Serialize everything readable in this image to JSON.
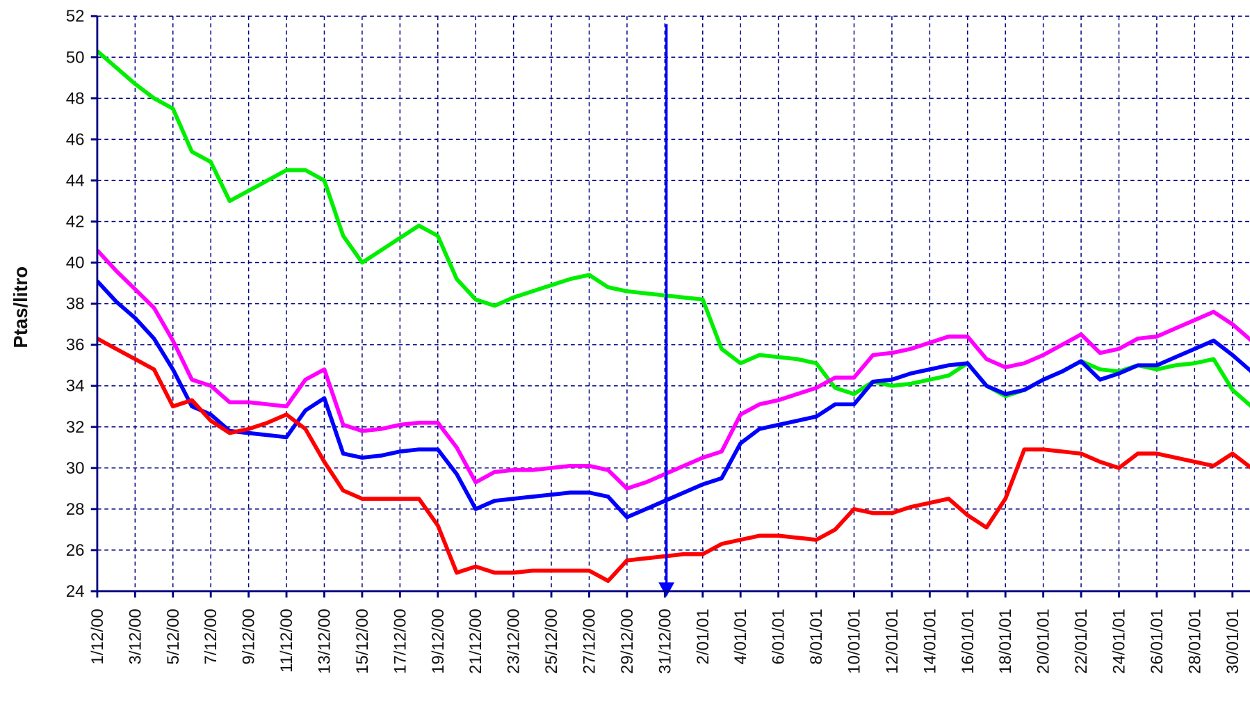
{
  "chart_data": {
    "type": "line",
    "y_label": "Ptas/litro",
    "categories": [
      "1/12/00",
      null,
      "3/12/00",
      null,
      "5/12/00",
      null,
      "7/12/00",
      null,
      "9/12/00",
      null,
      "11/12/00",
      null,
      "13/12/00",
      null,
      "15/12/00",
      null,
      "17/12/00",
      null,
      "19/12/00",
      null,
      "21/12/00",
      null,
      "23/12/00",
      null,
      "25/12/00",
      null,
      "27/12/00",
      null,
      "29/12/00",
      null,
      "31/12/00",
      null,
      "2/01/01",
      null,
      "4/01/01",
      null,
      "6/01/01",
      null,
      "8/01/01",
      null,
      "10/01/01",
      null,
      "12/01/01",
      null,
      "14/01/01",
      null,
      "16/01/01",
      null,
      "18/01/01",
      null,
      "20/01/01",
      null,
      "22/01/01",
      null,
      "24/01/01",
      null,
      "26/01/01",
      null,
      "28/01/01",
      null,
      "30/01/01",
      null
    ],
    "series": [
      {
        "color": "#00ee00",
        "values": [
          50.3,
          49.5,
          48.7,
          48.0,
          47.5,
          45.4,
          44.9,
          43.0,
          43.5,
          44.0,
          44.5,
          44.5,
          44.0,
          41.3,
          40.0,
          40.6,
          41.2,
          41.8,
          41.3,
          39.2,
          38.2,
          37.9,
          38.3,
          38.6,
          38.9,
          39.2,
          39.4,
          38.8,
          38.6,
          38.5,
          38.4,
          38.3,
          38.2,
          35.8,
          35.1,
          35.5,
          35.4,
          35.3,
          35.1,
          33.9,
          33.6,
          34.2,
          34.0,
          34.1,
          34.3,
          34.5,
          35.1,
          34.0,
          33.5,
          33.8,
          34.3,
          34.7,
          35.2,
          34.8,
          34.7,
          35.0,
          34.8,
          35.0,
          35.1,
          35.3,
          33.8,
          33.0
        ]
      },
      {
        "color": "#ff00ff",
        "values": [
          40.6,
          39.6,
          38.7,
          37.8,
          36.2,
          34.3,
          34.0,
          33.2,
          33.2,
          33.1,
          33.0,
          34.3,
          34.8,
          32.1,
          31.8,
          31.9,
          32.1,
          32.2,
          32.2,
          31.0,
          29.3,
          29.8,
          29.9,
          29.9,
          30.0,
          30.1,
          30.1,
          29.9,
          29.0,
          29.3,
          29.7,
          30.1,
          30.5,
          30.8,
          32.6,
          33.1,
          33.3,
          33.6,
          33.9,
          34.4,
          34.4,
          35.5,
          35.6,
          35.8,
          36.1,
          36.4,
          36.4,
          35.3,
          34.9,
          35.1,
          35.5,
          36.0,
          36.5,
          35.6,
          35.8,
          36.3,
          36.4,
          36.8,
          37.2,
          37.6,
          37.0,
          36.2
        ]
      },
      {
        "color": "#0000ff",
        "values": [
          39.1,
          38.1,
          37.3,
          36.3,
          34.8,
          33.0,
          32.6,
          31.8,
          31.7,
          31.6,
          31.5,
          32.8,
          33.4,
          30.7,
          30.5,
          30.6,
          30.8,
          30.9,
          30.9,
          29.7,
          28.0,
          28.4,
          28.5,
          28.6,
          28.7,
          28.8,
          28.8,
          28.6,
          27.6,
          28.0,
          28.4,
          28.8,
          29.2,
          29.5,
          31.2,
          31.9,
          32.1,
          32.3,
          32.5,
          33.1,
          33.1,
          34.2,
          34.3,
          34.6,
          34.8,
          35.0,
          35.1,
          34.0,
          33.6,
          33.8,
          34.3,
          34.7,
          35.2,
          34.3,
          34.6,
          35.0,
          35.0,
          35.4,
          35.8,
          36.2,
          35.5,
          34.7
        ]
      },
      {
        "color": "#ff0000",
        "values": [
          36.3,
          35.8,
          35.3,
          34.8,
          33.0,
          33.3,
          32.3,
          31.7,
          31.9,
          32.2,
          32.6,
          31.9,
          30.3,
          28.9,
          28.5,
          28.5,
          28.5,
          28.5,
          27.2,
          24.9,
          25.2,
          24.9,
          24.9,
          25.0,
          25.0,
          25.0,
          25.0,
          24.5,
          25.5,
          25.6,
          25.7,
          25.8,
          25.8,
          26.3,
          26.5,
          26.7,
          26.7,
          26.6,
          26.5,
          27.0,
          28.0,
          27.8,
          27.8,
          28.1,
          28.3,
          28.5,
          27.7,
          27.1,
          28.5,
          30.9,
          30.9,
          30.8,
          30.7,
          30.3,
          30.0,
          30.7,
          30.7,
          30.5,
          30.3,
          30.1,
          30.7,
          30.0
        ]
      }
    ],
    "ylim": [
      24,
      52
    ],
    "yticks": [
      24,
      26,
      28,
      30,
      32,
      34,
      36,
      38,
      40,
      42,
      44,
      46,
      48,
      50,
      52
    ],
    "grid": true
  }
}
